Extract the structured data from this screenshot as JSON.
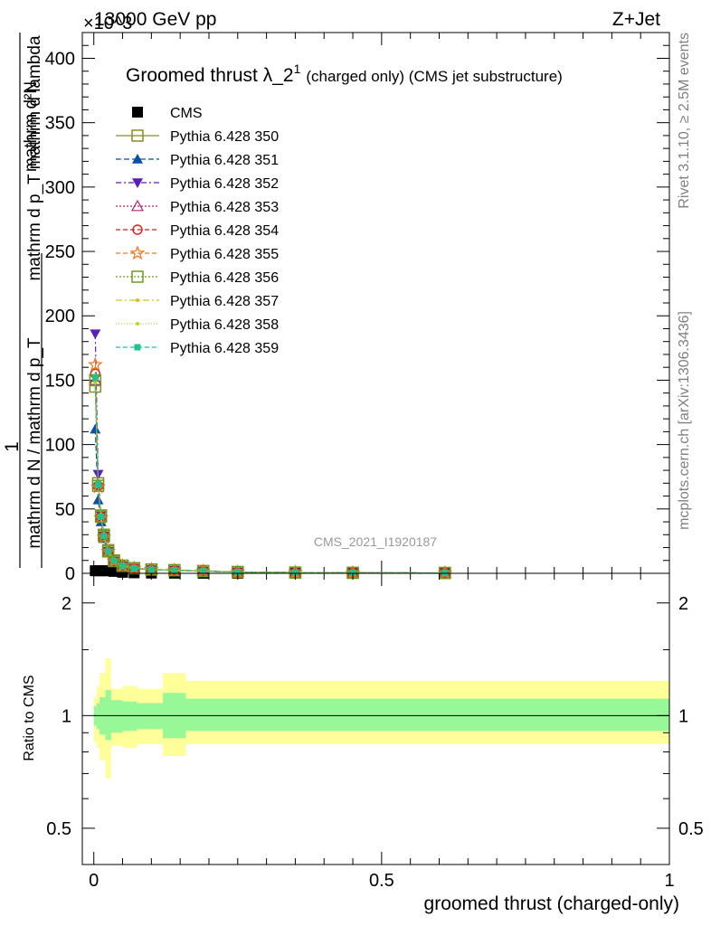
{
  "header": {
    "left": "13000 GeV pp",
    "right": "Z+Jet",
    "exponent": "×10^3"
  },
  "side": {
    "rivet": "Rivet 3.1.10, ≥ 2.5M events",
    "mcplots": "mcplots.cern.ch [arXiv:1306.3436]"
  },
  "watermark": "CMS_2021_I1920187",
  "chart_data": [
    {
      "type": "line",
      "title": "Groomed thrust λ_2^1 (charged only) (CMS jet substructure)",
      "title_main": "Groomed thrust λ_2",
      "title_sup": "1",
      "title_rest": "(charged only) (CMS jet substructure)",
      "ylabel_num_prefix": "1",
      "ylabel_num": "mathrm d²N",
      "ylabel_den1": "mathrm d N / mathrm d p_T",
      "ylabel_den2": "mathrm d p_T mathrm d lambda",
      "y_scale_note": "×10^3",
      "ylim": [
        0,
        420
      ],
      "xlim": [
        -0.02,
        1.0
      ],
      "y_ticks": [
        0,
        50,
        100,
        150,
        200,
        250,
        300,
        350,
        400
      ],
      "x_ticks": [
        0,
        0.5,
        1
      ],
      "grid": false,
      "legend_position": "top-left",
      "x": [
        0.0025,
        0.0075,
        0.0125,
        0.0175,
        0.025,
        0.035,
        0.05,
        0.07,
        0.1,
        0.14,
        0.19,
        0.25,
        0.35,
        0.45,
        0.61
      ],
      "series": [
        {
          "name": "CMS",
          "color": "#000000",
          "marker": "square-filled",
          "dash": "none",
          "values": [
            2,
            2,
            2,
            2,
            2,
            1.5,
            0.8,
            0.4,
            0.2,
            0.1,
            0.05,
            0.02,
            0.01,
            0.005,
            0.002
          ]
        },
        {
          "name": "Pythia 6.428 350",
          "color": "#8b8b20",
          "marker": "square-open",
          "dash": "solid",
          "values": [
            145,
            70,
            45,
            30,
            18,
            10,
            6,
            4,
            3,
            2.5,
            1.8,
            1,
            0.6,
            0.4,
            0.3
          ]
        },
        {
          "name": "Pythia 6.428 351",
          "color": "#0a4fa8",
          "marker": "triangle-up-filled",
          "dash": "6,3",
          "values": [
            112,
            57,
            40,
            27,
            16,
            9,
            5.5,
            3.8,
            2.8,
            2.3,
            1.7,
            1,
            0.6,
            0.4,
            0.3
          ]
        },
        {
          "name": "Pythia 6.428 352",
          "color": "#5a1fb5",
          "marker": "triangle-down-filled",
          "dash": "6,3,2,3",
          "values": [
            186,
            77,
            45,
            29,
            17,
            9.5,
            5.8,
            3.9,
            2.9,
            2.4,
            1.7,
            1,
            0.6,
            0.4,
            0.3
          ]
        },
        {
          "name": "Pythia 6.428 353",
          "color": "#b0207a",
          "marker": "triangle-up-open",
          "dash": "2,2",
          "values": [
            150,
            69,
            44,
            29,
            17,
            9.5,
            5.8,
            3.9,
            2.9,
            2.4,
            1.7,
            1,
            0.6,
            0.4,
            0.3
          ]
        },
        {
          "name": "Pythia 6.428 354",
          "color": "#d42020",
          "marker": "circle-open",
          "dash": "5,3",
          "values": [
            155,
            68,
            44,
            29,
            17,
            9.5,
            5.8,
            3.9,
            2.9,
            2.4,
            1.7,
            1,
            0.6,
            0.4,
            0.3
          ]
        },
        {
          "name": "Pythia 6.428 355",
          "color": "#f07a20",
          "marker": "star-open",
          "dash": "5,3",
          "values": [
            162,
            67,
            43,
            28,
            17,
            9.5,
            5.8,
            3.9,
            2.9,
            2.4,
            1.7,
            1,
            0.6,
            0.4,
            0.3
          ]
        },
        {
          "name": "Pythia 6.428 356",
          "color": "#6e9a1a",
          "marker": "square-open",
          "dash": "2,2",
          "values": [
            150,
            68,
            44,
            29,
            17,
            9.5,
            5.8,
            3.9,
            2.9,
            2.4,
            1.7,
            1,
            0.6,
            0.4,
            0.3
          ]
        },
        {
          "name": "Pythia 6.428 357",
          "color": "#d6c21a",
          "marker": "dot",
          "dash": "7,3,2,3",
          "values": [
            148,
            68,
            44,
            29,
            17,
            9.5,
            5.8,
            3.9,
            2.9,
            2.4,
            1.7,
            1,
            0.6,
            0.4,
            0.3
          ]
        },
        {
          "name": "Pythia 6.428 358",
          "color": "#b8d62a",
          "marker": "dot",
          "dash": "1,2",
          "values": [
            150,
            68,
            44,
            29,
            17,
            9.5,
            5.8,
            3.9,
            2.9,
            2.4,
            1.7,
            1,
            0.6,
            0.4,
            0.3
          ]
        },
        {
          "name": "Pythia 6.428 359",
          "color": "#1fc48a",
          "marker": "square-filled-small",
          "dash": "5,3",
          "values": [
            152,
            69,
            44,
            29,
            17,
            9.5,
            5.8,
            3.9,
            2.9,
            2.4,
            1.7,
            1,
            0.6,
            0.4,
            0.3
          ]
        }
      ]
    },
    {
      "type": "area",
      "ylabel": "Ratio to CMS",
      "xlabel": "groomed thrust (charged-only)",
      "ylim": [
        0.4,
        2.4
      ],
      "y_scale": "log",
      "y_ticks": [
        0.5,
        1,
        2
      ],
      "y_tick_labels": [
        "0.5",
        "1",
        "2"
      ],
      "xlim": [
        -0.02,
        1.0
      ],
      "x_ticks": [
        0,
        0.5,
        1
      ],
      "x_tick_labels": [
        "0",
        "0.5",
        "1"
      ],
      "bin_edges": [
        0.0,
        0.005,
        0.01,
        0.02,
        0.03,
        0.05,
        0.075,
        0.12,
        0.16,
        1.0
      ],
      "band_inner": {
        "color": "#98f898",
        "lo": [
          0.94,
          0.92,
          0.89,
          0.86,
          0.9,
          0.91,
          0.92,
          0.87,
          0.91
        ],
        "hi": [
          1.06,
          1.08,
          1.12,
          1.17,
          1.1,
          1.09,
          1.08,
          1.15,
          1.11
        ]
      },
      "band_outer": {
        "color": "#ffff99",
        "lo": [
          0.85,
          0.82,
          0.76,
          0.68,
          0.83,
          0.82,
          0.84,
          0.78,
          0.84
        ],
        "hi": [
          1.12,
          1.2,
          1.3,
          1.42,
          1.18,
          1.2,
          1.18,
          1.3,
          1.24
        ]
      },
      "reference_line": 1
    }
  ]
}
